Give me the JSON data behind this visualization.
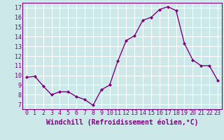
{
  "x": [
    0,
    1,
    2,
    3,
    4,
    5,
    6,
    7,
    8,
    9,
    10,
    11,
    12,
    13,
    14,
    15,
    16,
    17,
    18,
    19,
    20,
    21,
    22,
    23
  ],
  "y": [
    9.8,
    9.9,
    8.9,
    8.0,
    8.3,
    8.3,
    7.8,
    7.5,
    6.9,
    8.5,
    9.0,
    11.5,
    13.6,
    14.1,
    15.7,
    16.0,
    16.8,
    17.1,
    16.7,
    13.3,
    11.6,
    11.0,
    11.0,
    9.5
  ],
  "line_color": "#800080",
  "marker": "D",
  "marker_size": 2,
  "bg_color": "#cce8e8",
  "xlabel": "Windchill (Refroidissement éolien,°C)",
  "xlabel_fontsize": 7,
  "xlim": [
    -0.5,
    23.5
  ],
  "ylim": [
    6.5,
    17.5
  ],
  "yticks": [
    7,
    8,
    9,
    10,
    11,
    12,
    13,
    14,
    15,
    16,
    17
  ],
  "xticks": [
    0,
    1,
    2,
    3,
    4,
    5,
    6,
    7,
    8,
    9,
    10,
    11,
    12,
    13,
    14,
    15,
    16,
    17,
    18,
    19,
    20,
    21,
    22,
    23
  ],
  "grid_color": "#ffffff",
  "tick_fontsize": 6,
  "line_width": 1.0
}
